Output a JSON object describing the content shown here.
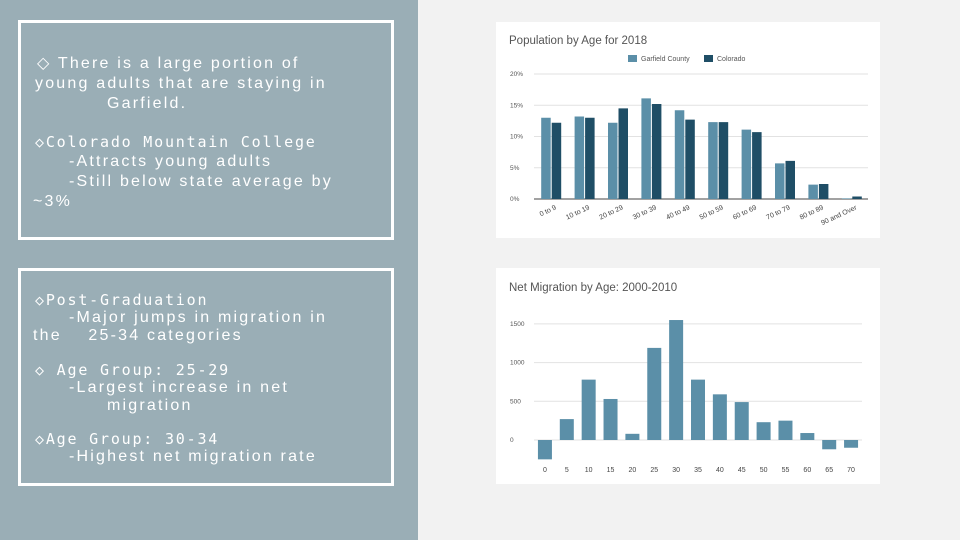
{
  "left_panel": {
    "box1": {
      "line1": "◇ There is a large portion of",
      "line2": "young adults that are staying in",
      "line3": "Garfield.",
      "line4": "◇Colorado Mountain College",
      "line5": "-Attracts young adults",
      "line6": "-Still below state average by",
      "line7": "~3%"
    },
    "box2": {
      "line1": "◇Post-Graduation",
      "line2": "-Major jumps in migration in",
      "line3": "the    25-34 categories",
      "line4": "◇ Age Group: 25-29",
      "line5": "-Largest increase in net",
      "line6": "migration",
      "line7": "◇Age Group: 30-34",
      "line8": "-Highest net migration rate"
    }
  },
  "colors": {
    "left_bg": "#9aaeb6",
    "garfield": "#5b8fa8",
    "colorado": "#1f4e66",
    "migration": "#5b8fa8"
  },
  "chart_data": [
    {
      "type": "bar",
      "title": "Population by Age for 2018",
      "categories": [
        "0 to 9",
        "10 to 19",
        "20 to 29",
        "30 to 39",
        "40 to 49",
        "50 to 59",
        "60 to 69",
        "70 to 79",
        "80 to 89",
        "90 and Over"
      ],
      "series": [
        {
          "name": "Garfield County",
          "values": [
            13.0,
            13.2,
            12.2,
            16.1,
            14.2,
            12.3,
            11.1,
            5.7,
            2.3,
            0.1
          ]
        },
        {
          "name": "Colorado",
          "values": [
            12.2,
            13.0,
            14.5,
            15.2,
            12.7,
            12.3,
            10.7,
            6.1,
            2.4,
            0.4
          ]
        }
      ],
      "yticks": [
        "20%",
        "15%",
        "10%",
        "5%",
        "0%"
      ],
      "ylim": [
        0,
        20
      ],
      "legend": "top-center",
      "grid": true
    },
    {
      "type": "bar",
      "title": "Net Migration by Age: 2000-2010",
      "categories": [
        "0",
        "5",
        "10",
        "15",
        "20",
        "25",
        "30",
        "35",
        "40",
        "45",
        "50",
        "55",
        "60",
        "65",
        "70"
      ],
      "values": [
        -250,
        270,
        780,
        530,
        80,
        1190,
        1550,
        780,
        590,
        490,
        230,
        250,
        90,
        -120,
        -100
      ],
      "yticks": [
        "1500",
        "1000",
        "500",
        "0"
      ],
      "ylim": [
        -300,
        1700
      ],
      "grid": true
    }
  ]
}
